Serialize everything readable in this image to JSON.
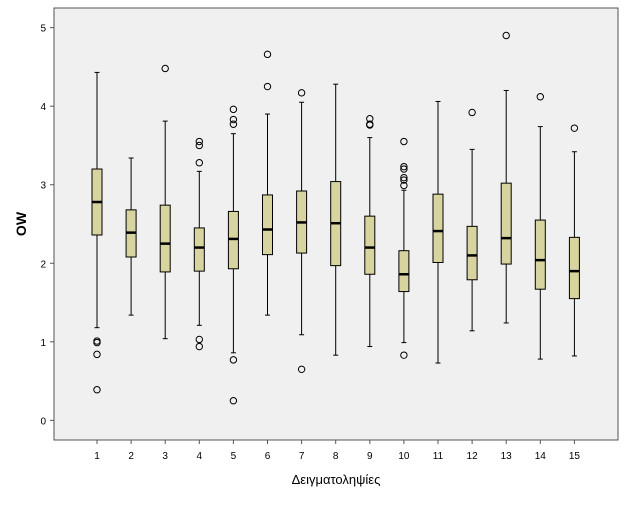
{
  "chart_data": {
    "type": "box",
    "title": "",
    "xlabel": "Δειγματοληψίες",
    "ylabel": "OW",
    "categories": [
      "1",
      "2",
      "3",
      "4",
      "5",
      "6",
      "7",
      "8",
      "9",
      "10",
      "11",
      "12",
      "13",
      "14",
      "15"
    ],
    "y_ticks": [
      "0",
      "1",
      "2",
      "3",
      "4",
      "5"
    ],
    "ylim": [
      -0.25,
      5.25
    ],
    "grid": false,
    "colors": {
      "plot_bg": "#f0f0f0",
      "box_fill": "#d8d4a0",
      "frame": "#555555",
      "whisker": "#000000"
    },
    "boxes": [
      {
        "category": "1",
        "whisker_low": 1.18,
        "q1": 2.36,
        "median": 2.78,
        "q3": 3.2,
        "whisker_high": 4.43,
        "outliers": [
          1.01,
          0.99,
          0.84,
          0.39
        ]
      },
      {
        "category": "2",
        "whisker_low": 1.34,
        "q1": 2.08,
        "median": 2.39,
        "q3": 2.68,
        "whisker_high": 3.34,
        "outliers": []
      },
      {
        "category": "3",
        "whisker_low": 1.04,
        "q1": 1.89,
        "median": 2.25,
        "q3": 2.74,
        "whisker_high": 3.81,
        "outliers": [
          4.48
        ]
      },
      {
        "category": "4",
        "whisker_low": 1.21,
        "q1": 1.9,
        "median": 2.2,
        "q3": 2.45,
        "whisker_high": 3.17,
        "outliers": [
          3.55,
          3.5,
          3.28,
          1.03,
          0.94
        ]
      },
      {
        "category": "5",
        "whisker_low": 0.86,
        "q1": 1.93,
        "median": 2.31,
        "q3": 2.66,
        "whisker_high": 3.65,
        "outliers": [
          3.96,
          3.83,
          3.77,
          0.77,
          0.25
        ]
      },
      {
        "category": "6",
        "whisker_low": 1.34,
        "q1": 2.11,
        "median": 2.43,
        "q3": 2.87,
        "whisker_high": 3.9,
        "outliers": [
          4.66,
          4.25
        ]
      },
      {
        "category": "7",
        "whisker_low": 1.09,
        "q1": 2.13,
        "median": 2.52,
        "q3": 2.92,
        "whisker_high": 4.05,
        "outliers": [
          4.17,
          0.65
        ]
      },
      {
        "category": "8",
        "whisker_low": 0.83,
        "q1": 1.97,
        "median": 2.51,
        "q3": 3.04,
        "whisker_high": 4.28,
        "outliers": []
      },
      {
        "category": "9",
        "whisker_low": 0.94,
        "q1": 1.86,
        "median": 2.2,
        "q3": 2.6,
        "whisker_high": 3.6,
        "outliers": [
          3.84,
          3.77,
          3.76
        ]
      },
      {
        "category": "10",
        "whisker_low": 0.99,
        "q1": 1.64,
        "median": 1.86,
        "q3": 2.16,
        "whisker_high": 2.93,
        "outliers": [
          3.55,
          3.23,
          3.2,
          3.09,
          3.06,
          2.99,
          0.83
        ]
      },
      {
        "category": "11",
        "whisker_low": 0.73,
        "q1": 2.01,
        "median": 2.41,
        "q3": 2.88,
        "whisker_high": 4.06,
        "outliers": []
      },
      {
        "category": "12",
        "whisker_low": 1.14,
        "q1": 1.79,
        "median": 2.1,
        "q3": 2.47,
        "whisker_high": 3.45,
        "outliers": [
          3.92
        ]
      },
      {
        "category": "13",
        "whisker_low": 1.24,
        "q1": 1.99,
        "median": 2.32,
        "q3": 3.02,
        "whisker_high": 4.2,
        "outliers": [
          4.9
        ]
      },
      {
        "category": "14",
        "whisker_low": 0.78,
        "q1": 1.67,
        "median": 2.04,
        "q3": 2.55,
        "whisker_high": 3.74,
        "outliers": [
          4.12
        ]
      },
      {
        "category": "15",
        "whisker_low": 0.82,
        "q1": 1.55,
        "median": 1.9,
        "q3": 2.33,
        "whisker_high": 3.42,
        "outliers": [
          3.72
        ]
      }
    ]
  }
}
